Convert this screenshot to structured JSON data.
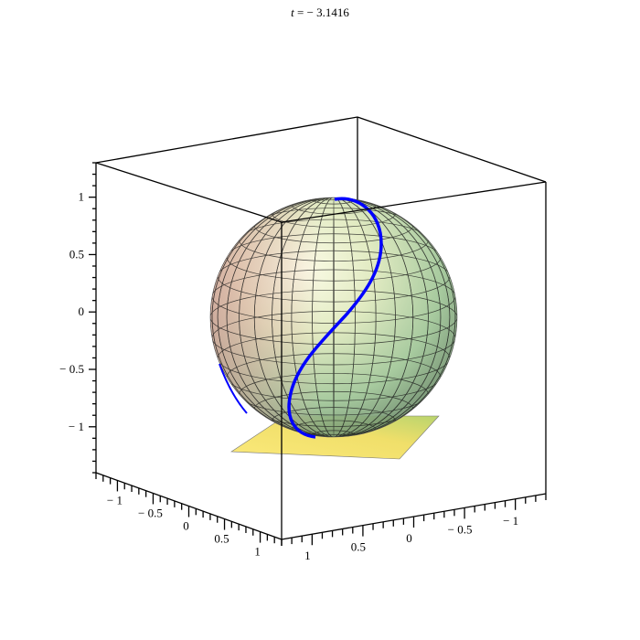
{
  "chart_data": {
    "type": "surface3d",
    "title": "t = − 3.1416",
    "title_var": "t",
    "title_value": "− 3.1416",
    "objects": [
      "unit sphere (translucent, gridded)",
      "curve on sphere (blue)",
      "plane at z = -1 (yellow)"
    ],
    "x_ticks": [
      -1,
      -0.5,
      0,
      0.5,
      1
    ],
    "x_tick_labels": [
      "− 1",
      "− 0.5",
      "0",
      "0.5",
      "1"
    ],
    "y_ticks": [
      1,
      0.5,
      0,
      -0.5,
      -1
    ],
    "y_tick_labels": [
      "1",
      "0.5",
      "0",
      "− 0.5",
      "− 1"
    ],
    "z_ticks": [
      1,
      0.5,
      0,
      -0.5,
      -1
    ],
    "z_tick_labels": [
      "1",
      "0.5",
      "0",
      "− 0.5",
      "− 1"
    ],
    "zlim": [
      -1.4,
      1.3
    ],
    "axes": "boxed",
    "colors": {
      "curve": "#0000ff",
      "plane": "#f5e27a",
      "box": "#000000"
    }
  }
}
